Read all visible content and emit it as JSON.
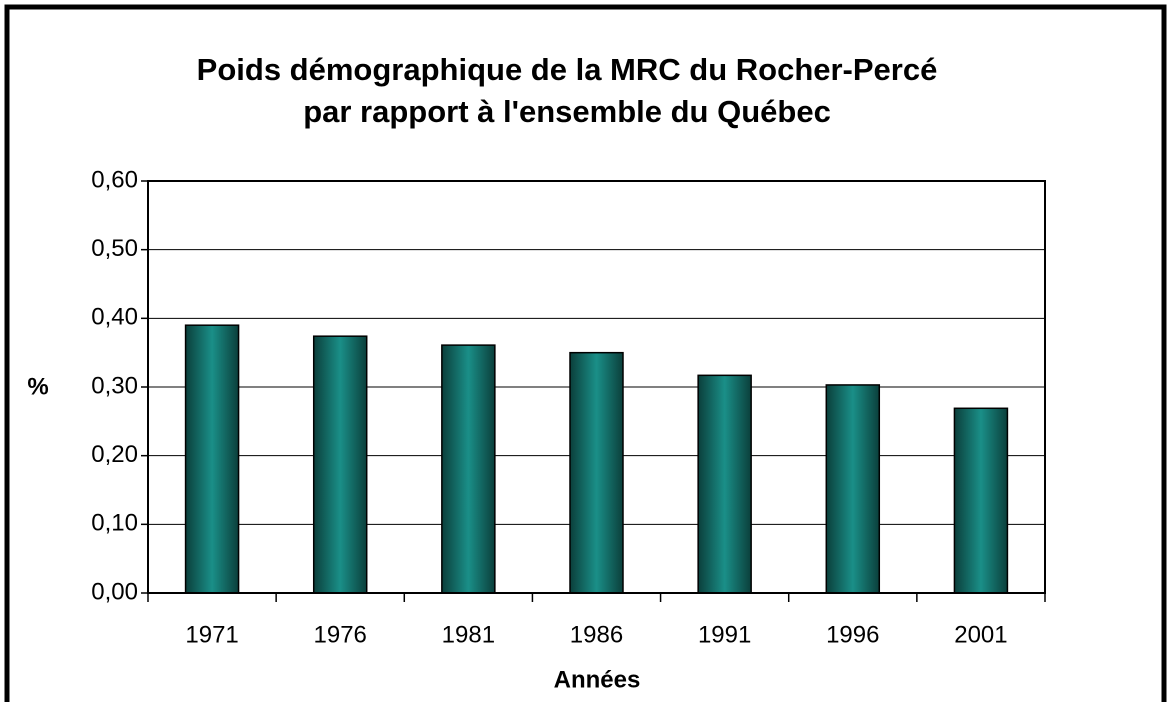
{
  "chart_data": {
    "type": "bar",
    "title": [
      "Poids démographique de la MRC du Rocher-Percé",
      "par rapport à l'ensemble du Québec"
    ],
    "x_label": "Années",
    "y_label": "%",
    "categories": [
      "1971",
      "1976",
      "1981",
      "1986",
      "1991",
      "1996",
      "2001"
    ],
    "values": [
      0.39,
      0.374,
      0.361,
      0.35,
      0.317,
      0.303,
      0.269
    ],
    "color": "#1a8f88",
    "ylim": [
      0,
      0.6
    ],
    "yticks": [
      {
        "value": 0,
        "label": "0,00"
      },
      {
        "value": 0.1,
        "label": "0,10"
      },
      {
        "value": 0.2,
        "label": "0,20"
      },
      {
        "value": 0.3,
        "label": "0,30"
      },
      {
        "value": 0.4,
        "label": "0,40"
      },
      {
        "value": 0.5,
        "label": "0,50"
      },
      {
        "value": 0.6,
        "label": "0,60"
      }
    ],
    "grid": true
  }
}
